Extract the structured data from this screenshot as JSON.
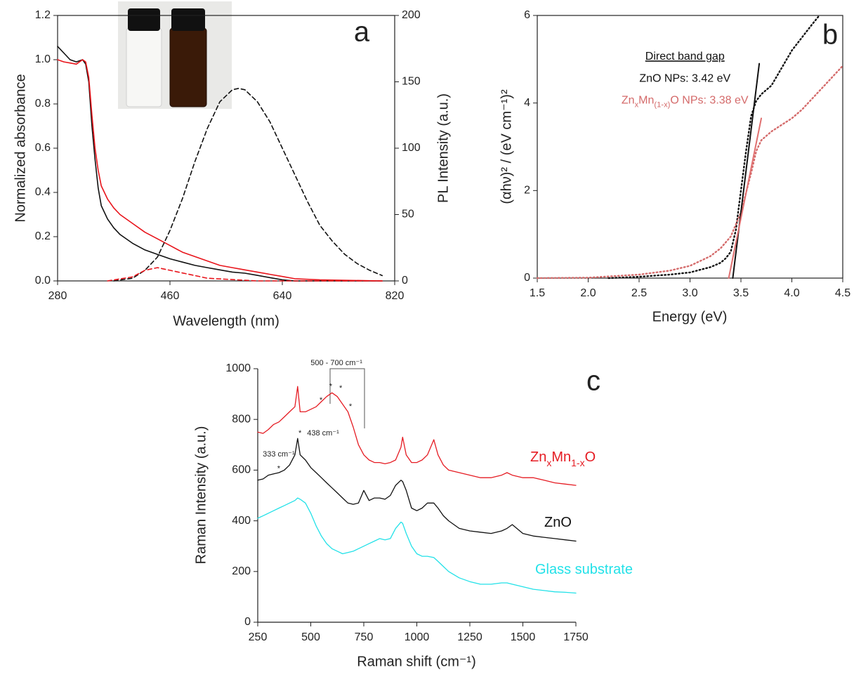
{
  "chart_data": [
    {
      "type": "line",
      "panel_label": "a",
      "xlabel": "Wavelength (nm)",
      "ylabel": "Normalized absorbance",
      "y2label": "PL Intensity (a.u.)",
      "xlim": [
        280,
        820
      ],
      "xticks": [
        280,
        460,
        640,
        820
      ],
      "ylim": [
        0,
        1.2
      ],
      "yticks": [
        {
          "value": 0,
          "label": "0.0"
        },
        0.2,
        0.4,
        0.6,
        0.8,
        {
          "value": 1,
          "label": "1.0"
        },
        1.2
      ],
      "y2lim": [
        0,
        200
      ],
      "y2ticks": [
        0,
        50,
        100,
        150,
        200
      ],
      "series": [
        {
          "color": "#111111",
          "dash": "solid",
          "x": [
            280,
            290,
            300,
            310,
            320,
            325,
            330,
            335,
            340,
            345,
            350,
            360,
            370,
            380,
            400,
            420,
            440,
            460,
            480,
            500,
            520,
            540,
            560,
            580,
            600,
            620,
            640,
            660,
            700,
            800
          ],
          "values": [
            1.06,
            1.03,
            1.0,
            0.99,
            1.0,
            0.98,
            0.9,
            0.7,
            0.55,
            0.42,
            0.34,
            0.28,
            0.24,
            0.21,
            0.17,
            0.14,
            0.12,
            0.1,
            0.085,
            0.07,
            0.06,
            0.05,
            0.04,
            0.035,
            0.025,
            0.015,
            0.005,
            0,
            0,
            0
          ]
        },
        {
          "color": "#e8141b",
          "dash": "solid",
          "x": [
            280,
            290,
            300,
            310,
            320,
            325,
            330,
            335,
            340,
            345,
            350,
            360,
            370,
            380,
            400,
            420,
            440,
            460,
            480,
            500,
            520,
            540,
            560,
            580,
            600,
            620,
            640,
            660,
            700,
            800
          ],
          "values": [
            1.0,
            0.99,
            0.985,
            0.98,
            1.0,
            0.99,
            0.92,
            0.75,
            0.6,
            0.5,
            0.43,
            0.37,
            0.33,
            0.3,
            0.26,
            0.22,
            0.19,
            0.16,
            0.13,
            0.11,
            0.09,
            0.07,
            0.06,
            0.05,
            0.04,
            0.03,
            0.02,
            0.01,
            0.005,
            0
          ]
        },
        {
          "color": "#111111",
          "dash": "dashed",
          "axis": "y2",
          "x": [
            370,
            400,
            420,
            440,
            460,
            480,
            500,
            520,
            540,
            560,
            570,
            580,
            600,
            620,
            640,
            660,
            680,
            700,
            720,
            740,
            760,
            780,
            800
          ],
          "values": [
            0,
            2,
            8,
            18,
            38,
            62,
            90,
            115,
            135,
            144,
            145,
            144,
            135,
            120,
            100,
            80,
            60,
            42,
            30,
            20,
            13,
            8,
            4
          ]
        },
        {
          "color": "#e8141b",
          "dash": "dashed",
          "axis": "y2",
          "x": [
            360,
            400,
            420,
            440,
            460,
            480,
            500,
            520,
            560,
            600,
            640,
            800
          ],
          "values": [
            0,
            3,
            8,
            10,
            8,
            6,
            4,
            2,
            1,
            0,
            0,
            0
          ]
        }
      ]
    },
    {
      "type": "line",
      "panel_label": "b",
      "xlabel": "Energy (eV)",
      "ylabel": "(αhν)² / (eV cm⁻¹)²",
      "xlim": [
        1.5,
        4.5
      ],
      "xticks": [
        1.5,
        {
          "value": 2,
          "label": "2.0"
        },
        2.5,
        {
          "value": 3,
          "label": "3.0"
        },
        3.5,
        {
          "value": 4,
          "label": "4.0"
        },
        4.5
      ],
      "ylim": [
        0,
        6
      ],
      "yticks": [
        0,
        2,
        4,
        6
      ],
      "series": [
        {
          "color": "#111111",
          "dash": "dotted",
          "x": [
            2.2,
            2.5,
            2.8,
            3.0,
            3.2,
            3.3,
            3.35,
            3.4,
            3.45,
            3.5,
            3.55,
            3.6,
            3.65,
            3.7,
            3.8,
            3.9,
            4.0,
            4.1,
            4.2,
            4.27
          ],
          "values": [
            0,
            0.03,
            0.08,
            0.13,
            0.25,
            0.35,
            0.45,
            0.6,
            1.1,
            2.0,
            2.9,
            3.7,
            4.05,
            4.2,
            4.4,
            4.8,
            5.2,
            5.5,
            5.8,
            6.0
          ]
        },
        {
          "color": "#d46a6a",
          "dash": "dotted",
          "x": [
            1.5,
            2.0,
            2.5,
            2.8,
            3.0,
            3.2,
            3.3,
            3.4,
            3.5,
            3.6,
            3.65,
            3.7,
            3.8,
            3.9,
            4.0,
            4.1,
            4.2,
            4.3,
            4.4,
            4.5
          ],
          "values": [
            0,
            0.01,
            0.08,
            0.17,
            0.28,
            0.5,
            0.68,
            0.95,
            1.5,
            2.4,
            2.9,
            3.15,
            3.35,
            3.5,
            3.65,
            3.85,
            4.1,
            4.35,
            4.6,
            4.85
          ]
        },
        {
          "color": "#111111",
          "dash": "solid",
          "x": [
            3.42,
            3.68
          ],
          "values": [
            0,
            4.9
          ]
        },
        {
          "color": "#e07070",
          "dash": "solid",
          "x": [
            3.38,
            3.7
          ],
          "values": [
            0,
            3.65
          ]
        }
      ],
      "annotations": [
        {
          "text": [
            "Direct band gap"
          ],
          "x": 2.95,
          "y": 5.05,
          "color": "#111111",
          "underline": true
        },
        {
          "text": [
            "ZnO NPs: 3.42 eV"
          ],
          "x": 2.95,
          "y": 4.55,
          "color": "#111111"
        },
        {
          "text": [
            "Zn",
            "x",
            "Mn",
            "(1-x)",
            "O NPs: 3.38 eV"
          ],
          "x": 2.95,
          "y": 4.05,
          "color": "#d46a6a"
        }
      ]
    },
    {
      "type": "line",
      "panel_label": "c",
      "xlabel": "Raman shift (cm⁻¹)",
      "ylabel": "Raman Intensity (a.u.)",
      "xlim": [
        250,
        1750
      ],
      "xticks": [
        250,
        500,
        750,
        1000,
        1250,
        1500,
        1750
      ],
      "ylim": [
        0,
        1000
      ],
      "yticks": [
        0,
        200,
        400,
        600,
        800,
        1000
      ],
      "series": [
        {
          "name": [
            "Zn",
            "x",
            "Mn",
            "1-x",
            "O"
          ],
          "color": "#e51c23",
          "dash": "solid",
          "x": [
            250,
            275,
            300,
            325,
            350,
            375,
            400,
            425,
            438,
            450,
            475,
            500,
            525,
            550,
            575,
            600,
            625,
            650,
            675,
            700,
            725,
            750,
            775,
            800,
            825,
            850,
            875,
            900,
            925,
            933,
            950,
            975,
            1000,
            1025,
            1050,
            1080,
            1100,
            1125,
            1150,
            1200,
            1250,
            1300,
            1350,
            1400,
            1425,
            1450,
            1500,
            1550,
            1600,
            1650,
            1700,
            1750
          ],
          "values": [
            750,
            745,
            760,
            780,
            790,
            810,
            830,
            850,
            930,
            830,
            830,
            840,
            850,
            870,
            890,
            905,
            890,
            860,
            830,
            770,
            700,
            660,
            640,
            630,
            630,
            625,
            630,
            640,
            690,
            730,
            660,
            630,
            630,
            640,
            660,
            720,
            660,
            620,
            600,
            590,
            580,
            570,
            570,
            580,
            590,
            580,
            570,
            570,
            560,
            550,
            545,
            540
          ]
        },
        {
          "name": [
            "ZnO"
          ],
          "color": "#111111",
          "dash": "solid",
          "x": [
            250,
            275,
            300,
            325,
            350,
            375,
            400,
            425,
            438,
            450,
            475,
            500,
            525,
            550,
            575,
            600,
            625,
            650,
            675,
            700,
            725,
            750,
            775,
            800,
            825,
            850,
            875,
            900,
            925,
            933,
            950,
            975,
            1000,
            1025,
            1050,
            1080,
            1100,
            1125,
            1150,
            1200,
            1250,
            1300,
            1350,
            1400,
            1425,
            1450,
            1500,
            1550,
            1600,
            1650,
            1700,
            1750
          ],
          "values": [
            560,
            565,
            580,
            585,
            590,
            600,
            620,
            660,
            725,
            660,
            640,
            610,
            590,
            570,
            550,
            530,
            510,
            490,
            470,
            465,
            470,
            520,
            480,
            490,
            490,
            485,
            500,
            540,
            560,
            555,
            520,
            450,
            440,
            450,
            470,
            470,
            450,
            420,
            400,
            370,
            360,
            355,
            350,
            360,
            370,
            385,
            350,
            340,
            335,
            330,
            325,
            320
          ]
        },
        {
          "name": [
            "Glass substrate"
          ],
          "color": "#22e1e8",
          "dash": "solid",
          "x": [
            250,
            275,
            300,
            325,
            350,
            375,
            400,
            425,
            438,
            450,
            475,
            500,
            525,
            550,
            575,
            600,
            625,
            650,
            675,
            700,
            725,
            750,
            775,
            800,
            825,
            850,
            875,
            900,
            925,
            933,
            950,
            975,
            1000,
            1025,
            1050,
            1080,
            1100,
            1125,
            1150,
            1200,
            1250,
            1300,
            1350,
            1400,
            1425,
            1450,
            1500,
            1550,
            1600,
            1650,
            1700,
            1750
          ],
          "values": [
            410,
            420,
            430,
            440,
            450,
            460,
            470,
            480,
            490,
            485,
            470,
            430,
            380,
            340,
            310,
            290,
            280,
            270,
            275,
            280,
            290,
            300,
            310,
            320,
            330,
            325,
            330,
            370,
            395,
            390,
            350,
            300,
            270,
            260,
            260,
            255,
            240,
            220,
            200,
            175,
            160,
            150,
            150,
            155,
            155,
            150,
            140,
            130,
            125,
            120,
            118,
            115
          ]
        }
      ],
      "annotations": [
        {
          "text": [
            "500 - 700 cm⁻¹"
          ],
          "x": 621,
          "y": 1022,
          "color": "#222222"
        },
        {
          "text": [
            "333 cm⁻¹"
          ],
          "x": 349,
          "y": 662,
          "color": "#222222"
        },
        {
          "text": [
            "438 cm⁻¹"
          ],
          "x": 558,
          "y": 745,
          "color": "#222222"
        },
        {
          "text": [
            "*"
          ],
          "x": 349,
          "y": 605,
          "color": "#222222"
        },
        {
          "text": [
            "*"
          ],
          "x": 449,
          "y": 745,
          "color": "#222222"
        },
        {
          "text": [
            "*"
          ],
          "x": 548,
          "y": 875,
          "color": "#222222"
        },
        {
          "text": [
            "*"
          ],
          "x": 594,
          "y": 930,
          "color": "#222222"
        },
        {
          "text": [
            "*"
          ],
          "x": 641,
          "y": 922,
          "color": "#222222"
        },
        {
          "text": [
            "*"
          ],
          "x": 687,
          "y": 850,
          "color": "#222222"
        }
      ]
    }
  ]
}
